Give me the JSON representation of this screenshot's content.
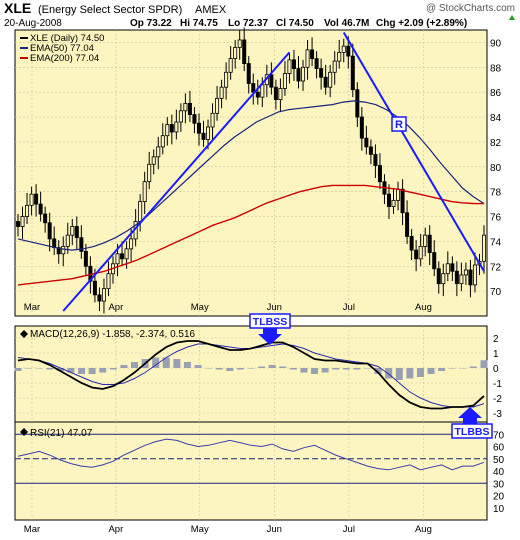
{
  "header": {
    "symbol": "XLE",
    "name": "(Energy Select Sector SPDR)",
    "exchange": "AMEX",
    "watermark": "@ StockCharts.com",
    "date": "20-Aug-2008",
    "open": "Op 73.22",
    "high": "Hi 74.75",
    "low": "Lo 72.37",
    "close": "Cl 74.50",
    "volume": "Vol 46.7M",
    "change": "Chg +2.09 (+2.89%)",
    "change_icon": "triangle-up-icon"
  },
  "colors": {
    "panel_bg": "#fdf5c0",
    "price": "#000000",
    "ema50": "#1a237e",
    "ema200": "#cc0000",
    "trendline": "#1a1aff",
    "macd_hist": "#9aa0b4",
    "rsi": "#3a3ab0",
    "rsi_bands": "#1a237e"
  },
  "chart_data": [
    {
      "type": "candlestick",
      "title": "XLE (Daily) 74.50",
      "legend": [
        {
          "name": "XLE (Daily) 74.50",
          "color": "#000000"
        },
        {
          "name": "EMA(50) 77.04",
          "color": "#1a237e"
        },
        {
          "name": "EMA(200) 77.04",
          "color": "#cc0000"
        }
      ],
      "ylim": [
        68,
        91
      ],
      "yticks": [
        70,
        72,
        74,
        76,
        78,
        80,
        82,
        84,
        86,
        88,
        90
      ],
      "xticks": [
        "Mar",
        "Apr",
        "May",
        "Jun",
        "Jul",
        "Aug"
      ],
      "close": [
        75.2,
        76.0,
        76.9,
        77.8,
        77.0,
        76.2,
        75.5,
        74.2,
        73.5,
        73.0,
        73.6,
        74.5,
        75.2,
        74.3,
        73.2,
        72.0,
        70.8,
        69.7,
        69.2,
        70.2,
        71.4,
        72.2,
        73.0,
        72.6,
        73.4,
        74.2,
        75.6,
        77.2,
        78.8,
        80.2,
        80.8,
        81.6,
        82.5,
        83.4,
        82.8,
        83.6,
        84.5,
        85.1,
        84.2,
        83.5,
        82.7,
        82.2,
        83.2,
        84.3,
        85.5,
        86.4,
        87.6,
        88.7,
        89.6,
        90.2,
        88.3,
        86.7,
        86.0,
        85.6,
        86.6,
        87.4,
        86.4,
        85.4,
        86.3,
        87.5,
        88.6,
        87.9,
        86.9,
        88.0,
        89.4,
        88.7,
        87.9,
        87.2,
        86.4,
        87.6,
        88.5,
        89.2,
        89.7,
        88.9,
        86.2,
        84.0,
        82.3,
        81.6,
        81.0,
        80.1,
        78.8,
        77.8,
        76.8,
        77.3,
        78.2,
        76.3,
        74.4,
        73.3,
        72.6,
        73.6,
        74.5,
        73.1,
        71.8,
        70.6,
        71.4,
        72.2,
        71.6,
        70.6,
        71.3,
        71.7,
        70.5,
        72.1,
        72.4,
        74.5
      ],
      "ema50": [
        74.2,
        74.0,
        73.8,
        73.6,
        73.4,
        73.3,
        73.4,
        73.6,
        73.9,
        74.3,
        74.8,
        75.4,
        76.1,
        76.9,
        77.7,
        78.5,
        79.3,
        80.1,
        80.9,
        81.7,
        82.4,
        83.0,
        83.6,
        84.0,
        84.4,
        84.6,
        84.7,
        84.8,
        84.9,
        85.0,
        85.2,
        85.3,
        85.2,
        85.0,
        84.6,
        84.0,
        83.3,
        82.4,
        81.4,
        80.3,
        79.3,
        78.3,
        77.6,
        77.04
      ],
      "ema200": [
        70.5,
        70.6,
        70.7,
        70.8,
        70.9,
        71.0,
        71.2,
        71.4,
        71.6,
        71.9,
        72.2,
        72.5,
        72.9,
        73.3,
        73.7,
        74.1,
        74.5,
        74.9,
        75.3,
        75.6,
        75.9,
        76.3,
        76.7,
        77.1,
        77.4,
        77.7,
        78.0,
        78.2,
        78.4,
        78.5,
        78.5,
        78.5,
        78.5,
        78.4,
        78.3,
        78.2,
        78.0,
        77.8,
        77.6,
        77.4,
        77.2,
        77.1,
        77.05,
        77.04
      ],
      "annotations": [
        "R"
      ]
    },
    {
      "type": "line",
      "title": "MACD(12,26,9) -1.858, -2.374, 0.516",
      "ylim": [
        -3.6,
        2.8
      ],
      "yticks": [
        2,
        1,
        0,
        -1,
        -2,
        -3
      ],
      "macd": [
        0.5,
        0.6,
        0.5,
        0.2,
        -0.2,
        -0.6,
        -1.0,
        -1.3,
        -1.4,
        -1.2,
        -0.8,
        -0.3,
        0.3,
        0.9,
        1.4,
        1.7,
        1.8,
        1.8,
        1.6,
        1.4,
        1.2,
        1.2,
        1.3,
        1.5,
        1.7,
        1.7,
        1.4,
        1.0,
        0.6,
        0.5,
        0.5,
        0.4,
        0.3,
        0.3,
        -0.3,
        -1.1,
        -1.8,
        -2.3,
        -2.6,
        -2.7,
        -2.7,
        -2.6,
        -2.6,
        -2.5,
        -1.858
      ],
      "signal": [
        0.7,
        0.6,
        0.5,
        0.3,
        0.0,
        -0.3,
        -0.6,
        -0.9,
        -1.1,
        -1.1,
        -1.0,
        -0.7,
        -0.3,
        0.2,
        0.7,
        1.1,
        1.4,
        1.6,
        1.6,
        1.5,
        1.4,
        1.3,
        1.3,
        1.4,
        1.5,
        1.6,
        1.5,
        1.3,
        1.0,
        0.8,
        0.6,
        0.5,
        0.4,
        0.3,
        0.1,
        -0.4,
        -1.0,
        -1.6,
        -2.0,
        -2.3,
        -2.5,
        -2.6,
        -2.6,
        -2.6,
        -2.374
      ],
      "annotations": [
        "TLBSS",
        "TLBBS"
      ]
    },
    {
      "type": "line",
      "title": "RSI(21) 47.07",
      "ylim": [
        0,
        80
      ],
      "yticks": [
        70,
        60,
        50,
        40,
        30,
        20,
        10
      ],
      "bands": [
        70,
        50,
        30
      ],
      "values": [
        52,
        54,
        56,
        53,
        49,
        46,
        44,
        43,
        45,
        48,
        53,
        57,
        61,
        64,
        66,
        65,
        62,
        60,
        61,
        63,
        65,
        63,
        61,
        60,
        62,
        58,
        56,
        59,
        61,
        57,
        53,
        50,
        47,
        44,
        42,
        41,
        43,
        45,
        41,
        43,
        45,
        41,
        44,
        44,
        47.07
      ]
    }
  ]
}
